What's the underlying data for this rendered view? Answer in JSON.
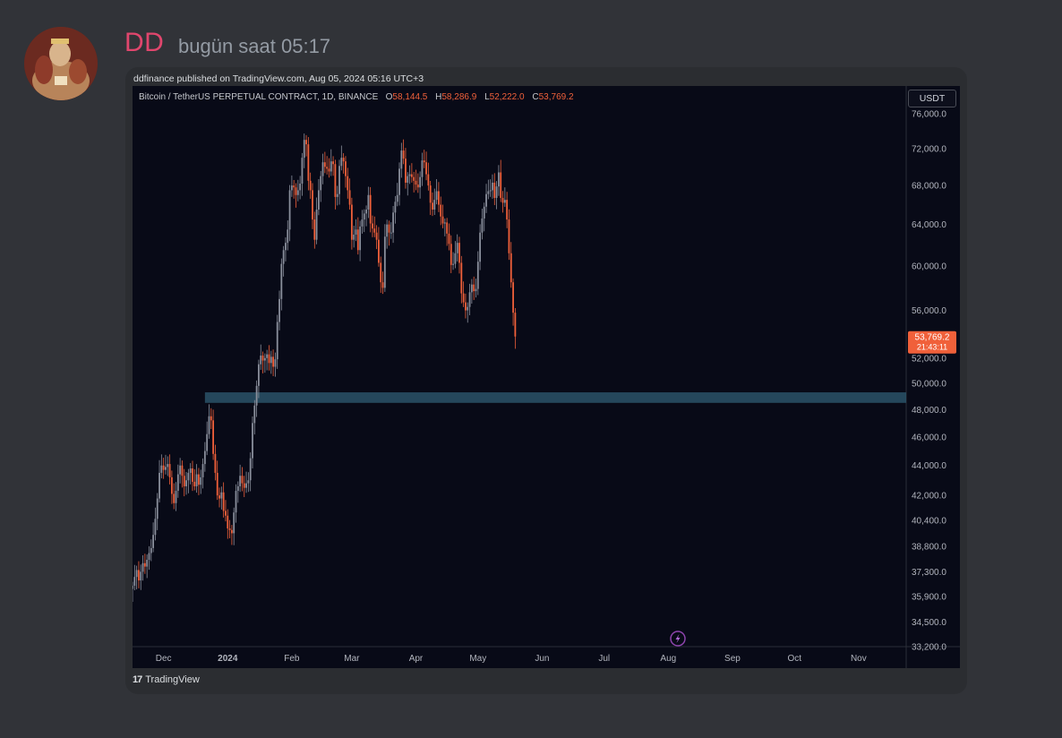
{
  "message": {
    "username": "DD",
    "timestamp": "bugün saat 05:17",
    "username_color": "#e0466d"
  },
  "embed": {
    "published_line": "ddfinance published on TradingView.com, Aug 05, 2024 05:16 UTC+3",
    "footer_brand": "TradingView",
    "footer_logo": "17"
  },
  "chart": {
    "symbol": "Bitcoin / TetherUS PERPETUAL CONTRACT, 1D, BINANCE",
    "open_label": "O",
    "open": "58,144.5",
    "high_label": "H",
    "high": "58,286.9",
    "low_label": "L",
    "low": "52,222.0",
    "close_label": "C",
    "close": "53,769.2",
    "currency_button": "USDT",
    "price_tag": "53,769.2",
    "countdown": "21:43:11",
    "up_color": "#8a8f9c",
    "down_color": "#f0603a",
    "zone_color": "#2a5268"
  },
  "chart_data": {
    "type": "candlestick",
    "y_scale": "log",
    "ylim": [
      33200,
      78500
    ],
    "y_ticks": [
      "76,000.0",
      "72,000.0",
      "68,000.0",
      "64,000.0",
      "60,000.0",
      "56,000.0",
      "52,000.0",
      "50,000.0",
      "48,000.0",
      "46,000.0",
      "44,000.0",
      "42,000.0",
      "40,400.0",
      "38,800.0",
      "37,300.0",
      "35,900.0",
      "34,500.0",
      "33,200.0"
    ],
    "y_tick_values": [
      76000,
      72000,
      68000,
      64000,
      60000,
      56000,
      52000,
      50000,
      48000,
      46000,
      44000,
      42000,
      40400,
      38800,
      37300,
      35900,
      34500,
      33200
    ],
    "x_ticks": [
      {
        "label": "Dec",
        "date": "2023-12-01"
      },
      {
        "label": "2024",
        "date": "2024-01-01"
      },
      {
        "label": "Feb",
        "date": "2024-02-01"
      },
      {
        "label": "Mar",
        "date": "2024-03-01"
      },
      {
        "label": "Apr",
        "date": "2024-04-01"
      },
      {
        "label": "May",
        "date": "2024-05-01"
      },
      {
        "label": "Jun",
        "date": "2024-06-01"
      },
      {
        "label": "Jul",
        "date": "2024-07-01"
      },
      {
        "label": "Aug",
        "date": "2024-08-01"
      },
      {
        "label": "Sep",
        "date": "2024-09-01"
      },
      {
        "label": "Oct",
        "date": "2024-10-01"
      },
      {
        "label": "Nov",
        "date": "2024-11-01"
      }
    ],
    "x_range": [
      "2023-11-16",
      "2024-11-24"
    ],
    "support_zone": {
      "from_date": "2023-12-21",
      "to": "2024-11-24",
      "low": 48500,
      "high": 49300
    },
    "price_path_start": "2023-11-16",
    "close_path": [
      36500,
      37000,
      37400,
      36800,
      37300,
      37800,
      37600,
      38000,
      38400,
      38700,
      39500,
      40500,
      41800,
      43500,
      44000,
      43700,
      43900,
      44100,
      43200,
      42100,
      41500,
      42300,
      43400,
      44000,
      43300,
      42600,
      43000,
      43500,
      43800,
      42900,
      42600,
      43400,
      42700,
      43200,
      44100,
      45000,
      46200,
      47500,
      47200,
      44800,
      43500,
      42000,
      41800,
      42200,
      41000,
      40700,
      39900,
      39800,
      39600,
      40900,
      42300,
      42600,
      43300,
      42800,
      42500,
      42800,
      43000,
      44500,
      47000,
      48300,
      49800,
      51500,
      52200,
      51800,
      52000,
      52300,
      51600,
      52100,
      51300,
      51900,
      55000,
      57000,
      60200,
      61500,
      62200,
      63500,
      67500,
      68000,
      67800,
      67000,
      67500,
      68200,
      71000,
      73000,
      72500,
      68500,
      67500,
      64500,
      62500,
      65500,
      67500,
      69000,
      70500,
      70000,
      69800,
      69500,
      70600,
      70300,
      66800,
      67100,
      70100,
      71000,
      70600,
      69000,
      67500,
      66000,
      62500,
      63000,
      63500,
      61500,
      63800,
      64500,
      65100,
      65500,
      67000,
      64100,
      63600,
      63200,
      62500,
      60300,
      58500,
      58000,
      62800,
      64000,
      63200,
      63200,
      65200,
      66300,
      67000,
      69800,
      71800,
      70900,
      68300,
      69000,
      69200,
      68900,
      68500,
      68100,
      67800,
      68900,
      70700,
      70500,
      69200,
      68000,
      66200,
      65500,
      66500,
      67400,
      66000,
      64800,
      64100,
      64200,
      63100,
      62100,
      60100,
      60200,
      61200,
      62200,
      60300,
      57500,
      56700,
      56000,
      56300,
      57600,
      58300,
      57700,
      57900,
      60400,
      63200,
      64600,
      65800,
      67100,
      67400,
      67500,
      68300,
      66700,
      67900,
      69400,
      66700,
      66200,
      66500,
      64500,
      61200,
      58500,
      55800,
      53769
    ]
  }
}
